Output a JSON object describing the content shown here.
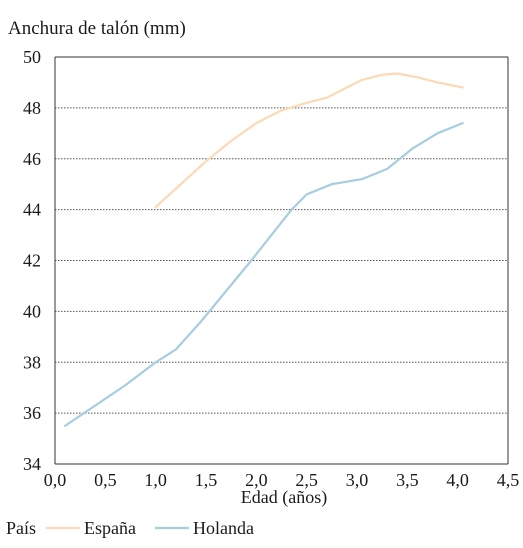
{
  "chart_data": {
    "type": "line",
    "title": "",
    "ylabel": "Anchura de talón (mm)",
    "xlabel": "Edad (años)",
    "xlim": [
      0.0,
      4.5
    ],
    "ylim": [
      34,
      50
    ],
    "x_ticks": [
      "0,0",
      "0,5",
      "1,0",
      "1,5",
      "2,0",
      "2,5",
      "3,0",
      "3,5",
      "4,0",
      "4,5"
    ],
    "y_ticks": [
      "34",
      "36",
      "38",
      "40",
      "42",
      "44",
      "46",
      "48",
      "50"
    ],
    "grid": "horizontal dotted",
    "legend": {
      "title": "País",
      "position": "bottom-left"
    },
    "series": [
      {
        "name": "España",
        "color": "#fdd9b5",
        "x": [
          1.0,
          1.25,
          1.5,
          1.75,
          2.0,
          2.25,
          2.5,
          2.7,
          2.9,
          3.05,
          3.25,
          3.4,
          3.6,
          3.8,
          4.05
        ],
        "y": [
          44.1,
          45.0,
          45.9,
          46.7,
          47.4,
          47.9,
          48.2,
          48.4,
          48.8,
          49.1,
          49.3,
          49.35,
          49.2,
          49.0,
          48.8
        ]
      },
      {
        "name": "Holanda",
        "color": "#a7cde0",
        "x": [
          0.1,
          0.4,
          0.7,
          1.0,
          1.2,
          1.45,
          1.7,
          1.95,
          2.15,
          2.35,
          2.5,
          2.75,
          3.05,
          3.3,
          3.55,
          3.8,
          4.05
        ],
        "y": [
          35.5,
          36.3,
          37.1,
          38.0,
          38.5,
          39.6,
          40.8,
          42.0,
          43.0,
          44.0,
          44.6,
          45.0,
          45.2,
          45.6,
          46.4,
          47.0,
          47.4
        ]
      }
    ]
  }
}
